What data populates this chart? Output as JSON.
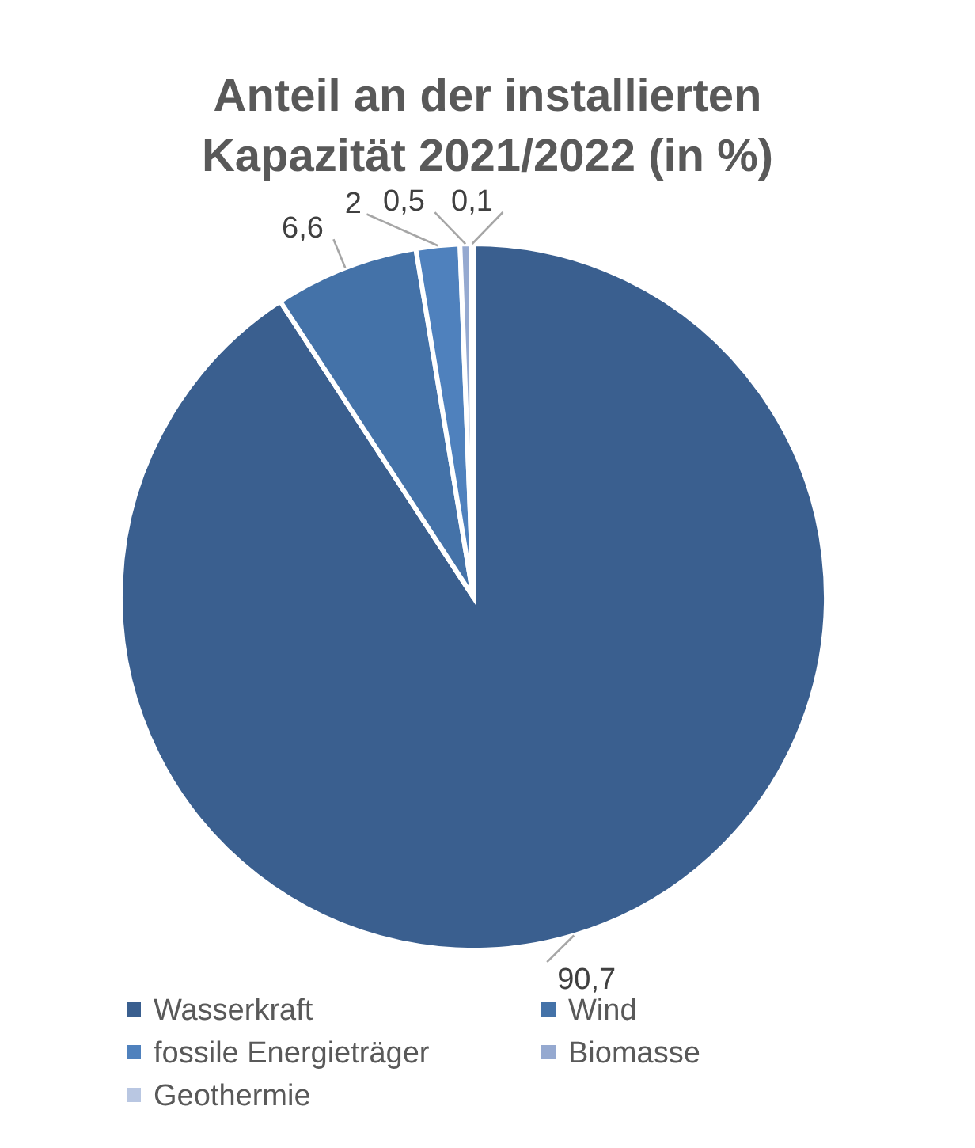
{
  "chart_data": {
    "type": "pie",
    "title": "Anteil an der installierten Kapazität 2021/2022 (in %)",
    "categories": [
      "Wasserkraft",
      "Wind",
      "fossile Energieträger",
      "Biomasse",
      "Geothermie"
    ],
    "values": [
      90.7,
      6.6,
      2,
      0.5,
      0.1
    ],
    "colors": [
      "#3a5f8f",
      "#4472a8",
      "#4f81bd",
      "#95a9d0",
      "#b9c7e2"
    ],
    "value_labels": [
      "90,7",
      "6,6",
      "2",
      "0,5",
      "0,1"
    ],
    "legend": "bottom"
  }
}
